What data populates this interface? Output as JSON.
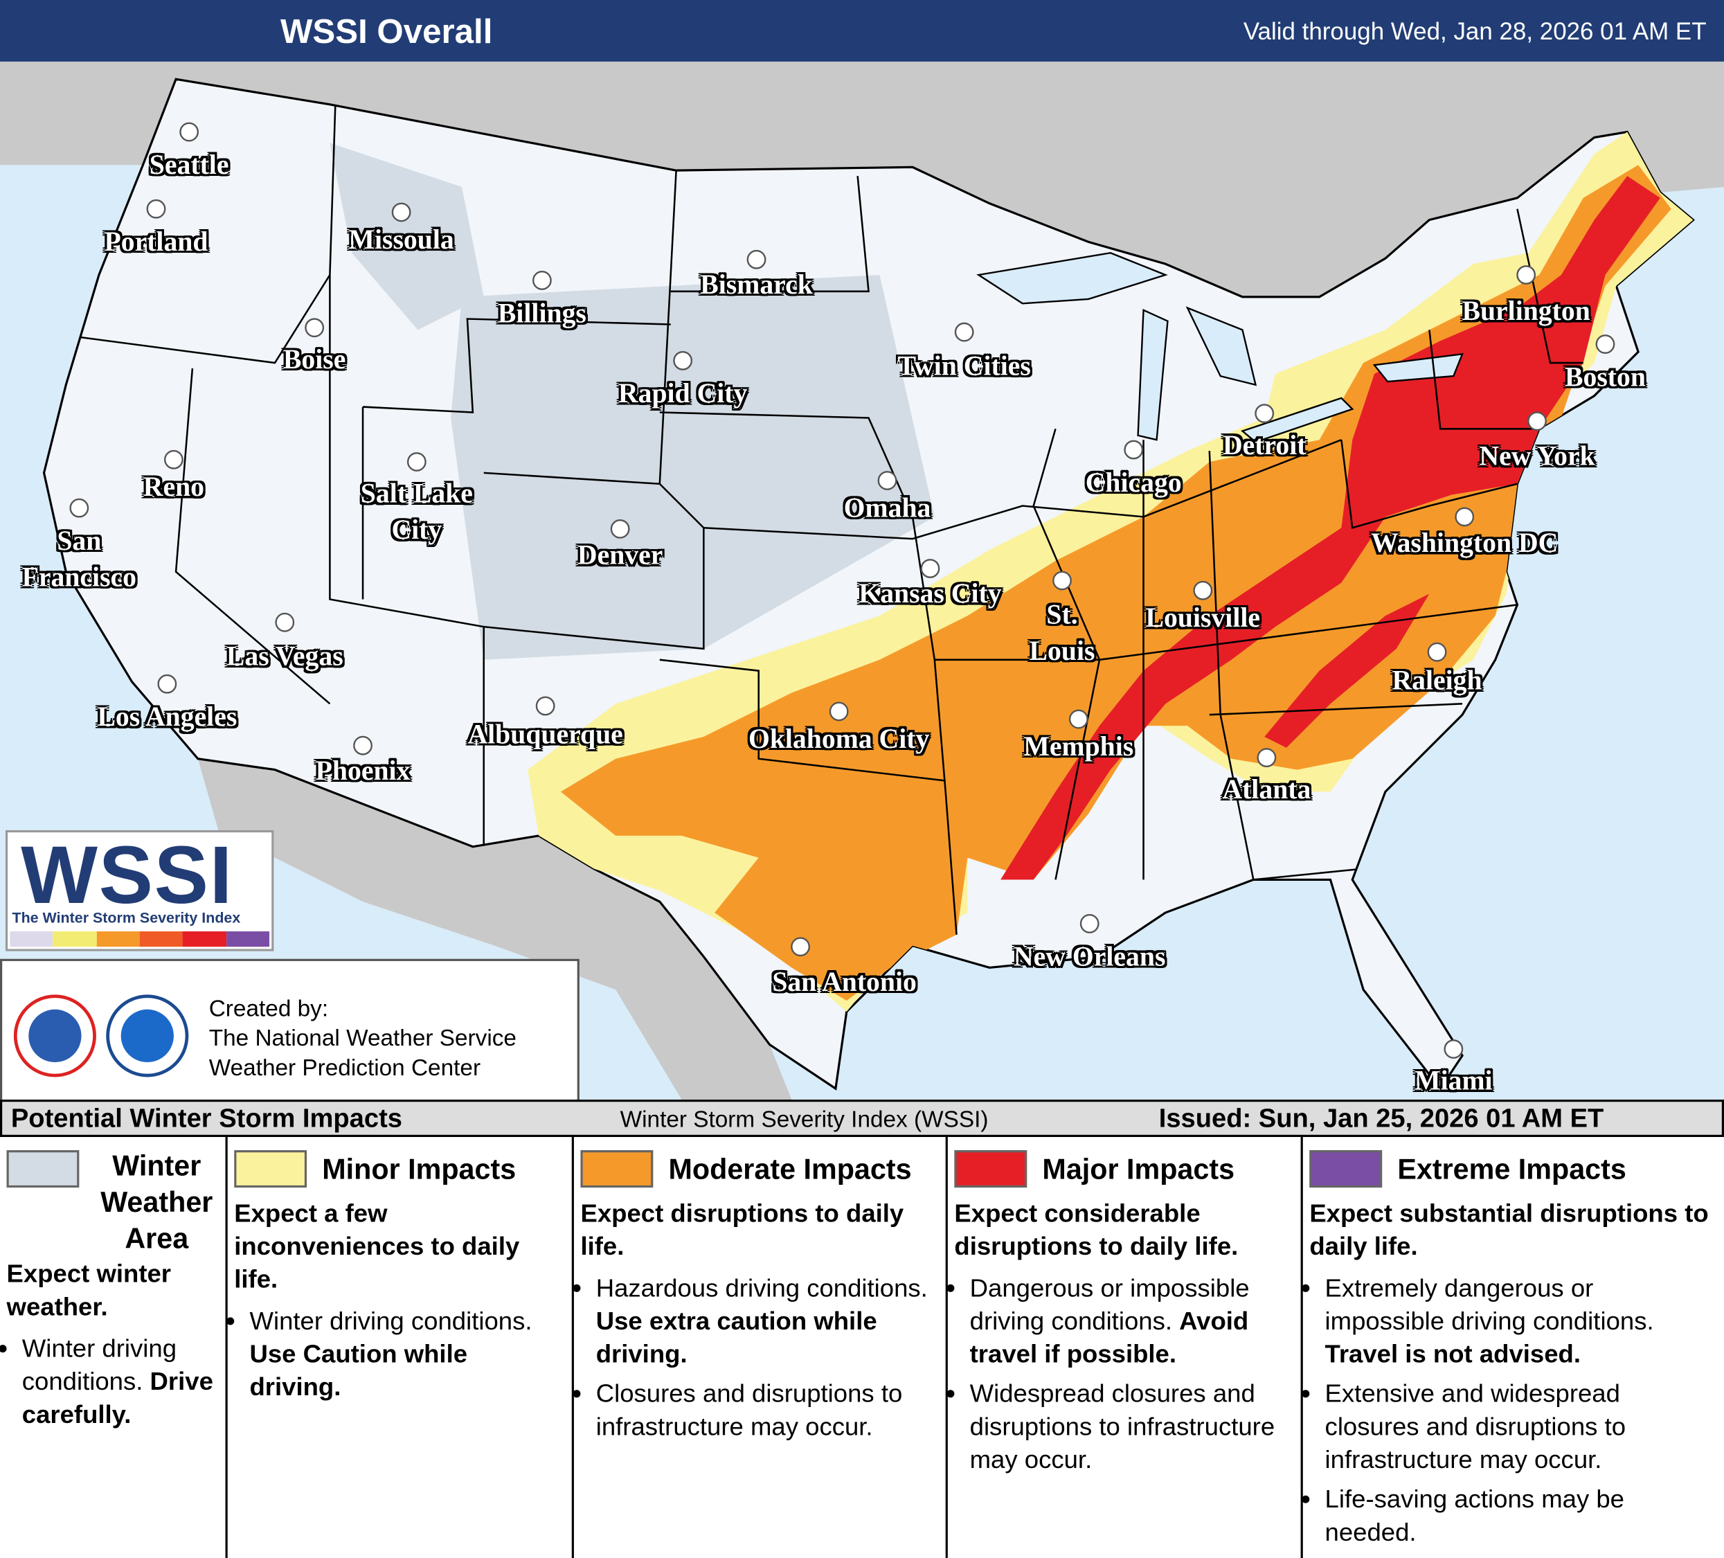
{
  "header": {
    "title": "WSSI Overall",
    "valid": "Valid through Wed, Jan 28, 2026 01 AM ET"
  },
  "logo": {
    "acronym": "WSSI",
    "subtitle": "The Winter Storm Severity Index"
  },
  "credits": {
    "created_by": "Created by:",
    "lines": [
      "The National Weather Service",
      "Weather Prediction Center"
    ]
  },
  "map": {
    "cities": [
      "Seattle",
      "Portland",
      "Missoula",
      "Billings",
      "Bismarck",
      "Boise",
      "Rapid City",
      "Twin Cities",
      "Reno",
      "Salt Lake City",
      "Denver",
      "Omaha",
      "Chicago",
      "Detroit",
      "San Francisco",
      "Kansas City",
      "St. Louis",
      "Louisville",
      "Burlington",
      "Boston",
      "New York",
      "Washington DC",
      "Las Vegas",
      "Los Angeles",
      "Albuquerque",
      "Oklahoma City",
      "Memphis",
      "Raleigh",
      "Phoenix",
      "Atlanta",
      "San Antonio",
      "New Orleans",
      "Miami"
    ]
  },
  "legend": {
    "title": "Potential Winter Storm Impacts",
    "index_name": "Winter Storm Severity Index (WSSI)",
    "issued": "Issued: Sun, Jan 25, 2026 01 AM ET",
    "categories": [
      {
        "name": "Winter Weather Area",
        "color": "#d3dce4",
        "summary": "Expect winter weather.",
        "bullets": [
          {
            "text": "Winter driving conditions.",
            "emphasis": "Drive carefully."
          }
        ]
      },
      {
        "name": "Minor Impacts",
        "color": "#fbf29d",
        "summary": "Expect a few inconveniences to daily life.",
        "bullets": [
          {
            "text": "Winter driving conditions.",
            "emphasis": "Use Caution while driving."
          }
        ]
      },
      {
        "name": "Moderate Impacts",
        "color": "#f59a2a",
        "summary": "Expect disruptions to daily life.",
        "bullets": [
          {
            "text": "Hazardous driving conditions.",
            "emphasis": "Use extra caution while driving."
          },
          {
            "text": "Closures and disruptions to infrastructure may occur."
          }
        ]
      },
      {
        "name": "Major Impacts",
        "color": "#e61f27",
        "summary": "Expect considerable disruptions to daily life.",
        "bullets": [
          {
            "text": "Dangerous or impossible driving conditions.",
            "emphasis": "Avoid travel if possible."
          },
          {
            "text": "Widespread closures and disruptions to infrastructure may occur."
          }
        ]
      },
      {
        "name": "Extreme Impacts",
        "color": "#7b4ea6",
        "summary": "Expect substantial disruptions to daily life.",
        "bullets": [
          {
            "text": "Extremely dangerous or impossible driving conditions.",
            "emphasis": "Travel is not advised."
          },
          {
            "text": "Extensive and widespread closures and disruptions to infrastructure may occur."
          },
          {
            "text": "Life-saving actions may be needed."
          }
        ]
      }
    ]
  }
}
